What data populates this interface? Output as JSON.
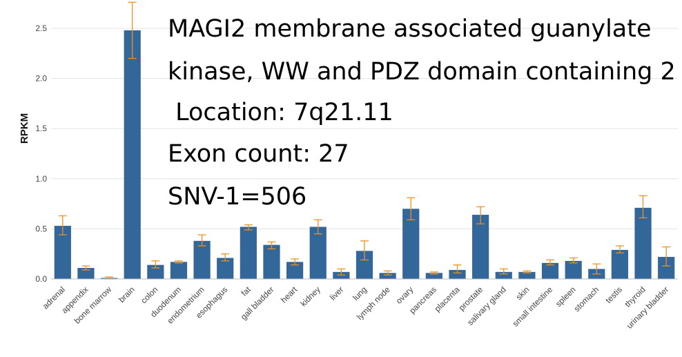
{
  "chart_data": {
    "type": "bar",
    "title_lines": [
      "MAGI2 membrane associated guanylate",
      "kinase, WW and PDZ domain containing 2",
      " Location: 7q21.11",
      "Exon count: 27",
      "SNV-1=506"
    ],
    "ylabel": "RPKM",
    "xlabel": "",
    "ylim": [
      0,
      2.75
    ],
    "yticks": [
      0.0,
      0.5,
      1.0,
      1.5,
      2.0,
      2.5
    ],
    "ytick_labels": [
      "0.0",
      "0.5",
      "1.0",
      "1.5",
      "2.0",
      "2.5"
    ],
    "grid": true,
    "categories": [
      "adrenal",
      "appendix",
      "bone marrow",
      "brain",
      "colon",
      "duodenum",
      "endometrium",
      "esophagus",
      "fat",
      "gall bladder",
      "heart",
      "kidney",
      "liver",
      "lung",
      "lymph node",
      "ovary",
      "pancreas",
      "placenta",
      "prostate",
      "salivary gland",
      "skin",
      "small intestine",
      "spleen",
      "stomach",
      "testis",
      "thyroid",
      "urinary bladder"
    ],
    "values": [
      0.53,
      0.11,
      0.01,
      2.48,
      0.14,
      0.17,
      0.38,
      0.21,
      0.52,
      0.34,
      0.17,
      0.52,
      0.07,
      0.28,
      0.06,
      0.7,
      0.06,
      0.09,
      0.64,
      0.07,
      0.07,
      0.16,
      0.18,
      0.1,
      0.29,
      0.71,
      0.22
    ],
    "error_low": [
      0.44,
      0.09,
      0.0,
      2.2,
      0.11,
      0.16,
      0.33,
      0.18,
      0.49,
      0.3,
      0.14,
      0.45,
      0.04,
      0.19,
      0.04,
      0.59,
      0.05,
      0.06,
      0.55,
      0.05,
      0.06,
      0.14,
      0.16,
      0.05,
      0.26,
      0.61,
      0.13
    ],
    "error_high": [
      0.63,
      0.13,
      0.02,
      2.76,
      0.18,
      0.18,
      0.44,
      0.25,
      0.54,
      0.37,
      0.2,
      0.59,
      0.1,
      0.38,
      0.08,
      0.81,
      0.07,
      0.14,
      0.72,
      0.1,
      0.08,
      0.19,
      0.21,
      0.15,
      0.33,
      0.83,
      0.32
    ],
    "colors": {
      "bar": "#336699",
      "error": "#f0901e"
    }
  }
}
